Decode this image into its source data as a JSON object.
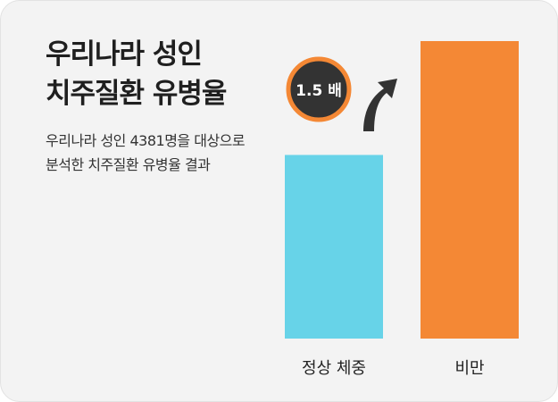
{
  "title_lines": [
    "우리나라 성인",
    "치주질환 유병율"
  ],
  "subtitle_lines": [
    "우리나라 성인 4381명을 대상으로",
    "분석한 치주질환 유병율 결과"
  ],
  "colors": {
    "normal": "#67d3e8",
    "obese": "#f48835",
    "badge_fill": "#333333",
    "badge_ring": "#f48835",
    "arrow": "#333333"
  },
  "chart_data": {
    "type": "bar",
    "categories": [
      "정상 체중",
      "비만"
    ],
    "values": [
      1,
      1.62
    ],
    "ylim": [
      0,
      1.62
    ],
    "annotation": {
      "text": "1.5 배",
      "icon": "curved-arrow-up-right-icon"
    }
  }
}
